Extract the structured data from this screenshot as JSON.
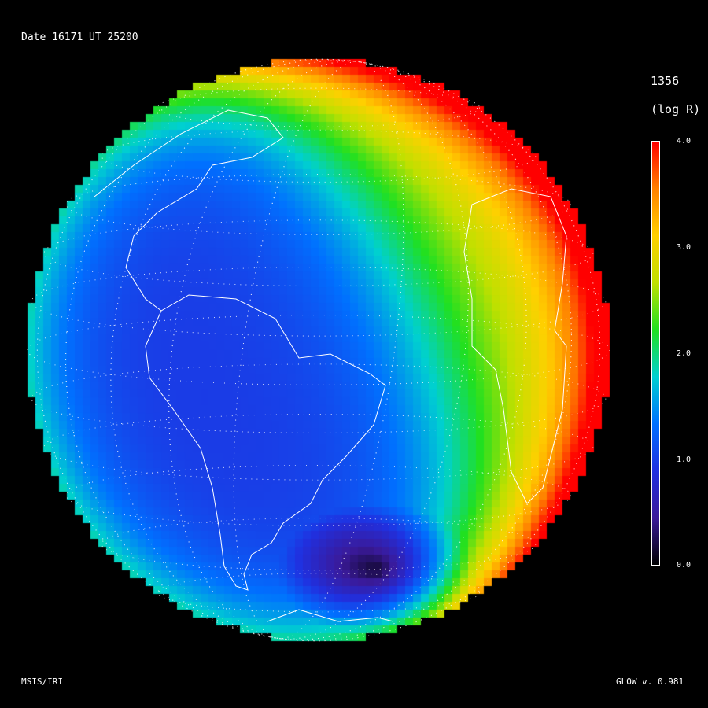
{
  "header": {
    "date_label": "Date 16171",
    "ut_label": "UT 25200"
  },
  "colorbar": {
    "wavelength": "1356",
    "units": "(log R)",
    "range": [
      0.0,
      4.0
    ],
    "ticks": [
      "4.0",
      "3.0",
      "2.0",
      "1.0",
      "0.0"
    ],
    "colormap": [
      "#000000",
      "#3a1a9a",
      "#2030e0",
      "#0070ff",
      "#00d0d0",
      "#20e020",
      "#c0e000",
      "#ffd000",
      "#ff8000",
      "#ff0000"
    ]
  },
  "footer": {
    "left": "MSIS/IRI",
    "right": "GLOW v. 0.981"
  },
  "map": {
    "projection": "orthographic",
    "grid": "dotted",
    "coastlines_color": "#ffffff"
  }
}
